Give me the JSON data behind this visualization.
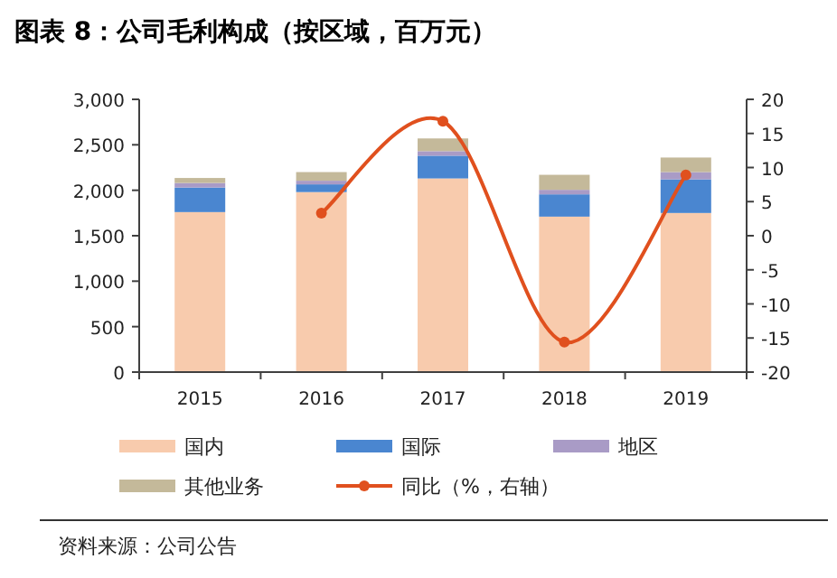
{
  "chart_data": {
    "type": "bar",
    "title": "图表 8：公司毛利构成（按区域，百万元）",
    "categories": [
      "2015",
      "2016",
      "2017",
      "2018",
      "2019"
    ],
    "stacked": true,
    "series": [
      {
        "name": "国内",
        "color": "#f8cbad",
        "values": [
          1760,
          1980,
          2130,
          1710,
          1750
        ]
      },
      {
        "name": "国际",
        "color": "#4a86d0",
        "values": [
          270,
          85,
          250,
          245,
          370
        ]
      },
      {
        "name": "地区",
        "color": "#a99bc6",
        "values": [
          50,
          40,
          50,
          50,
          80
        ]
      },
      {
        "name": "其他业务",
        "color": "#c4b99a",
        "values": [
          55,
          95,
          140,
          165,
          160
        ]
      },
      {
        "name": "同比（%，右轴）",
        "type": "line",
        "axis": "y2",
        "marker": "circle",
        "color": "#e0501e",
        "values": [
          null,
          3.3,
          16.8,
          -15.6,
          8.9
        ]
      }
    ],
    "ylim": [
      0,
      3000
    ],
    "yticks": [
      {
        "value": 0,
        "label": "0"
      },
      {
        "value": 500,
        "label": "500"
      },
      {
        "value": 1000,
        "label": "1,000"
      },
      {
        "value": 1500,
        "label": "1,500"
      },
      {
        "value": 2000,
        "label": "2,000"
      },
      {
        "value": 2500,
        "label": "2,500"
      },
      {
        "value": 3000,
        "label": "3,000"
      }
    ],
    "y2lim": [
      -20,
      20
    ],
    "y2ticks": [
      -20,
      -15,
      -10,
      -5,
      0,
      5,
      10,
      15,
      20
    ],
    "legend": "bottom",
    "annotations": [
      "资料来源：公司公告"
    ]
  }
}
